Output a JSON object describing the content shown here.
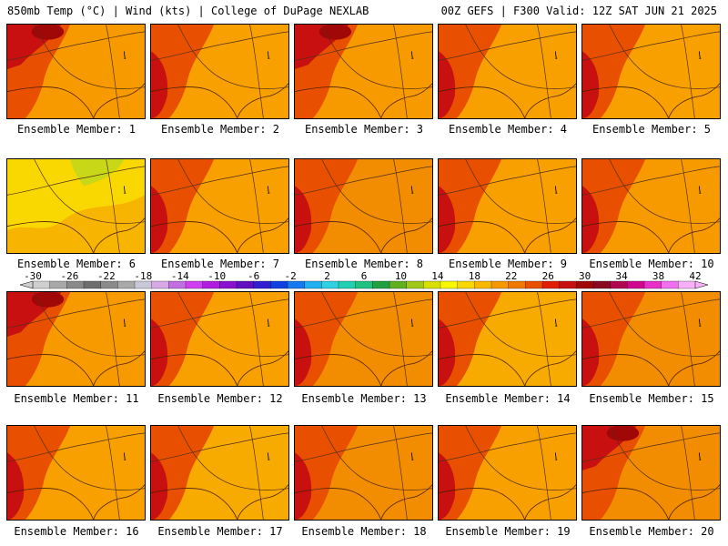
{
  "header": {
    "left": "850mb Temp (°C) | Wind (kts) | College of DuPage NEXLAB",
    "right": "00Z GEFS | F300 Valid: 12Z SAT JUN 21 2025"
  },
  "members": [
    {
      "label": "Ensemble Member: 1",
      "base": "#f79a00",
      "hot_side": "west-northwest"
    },
    {
      "label": "Ensemble Member: 2",
      "base": "#f7a000",
      "hot_side": "west"
    },
    {
      "label": "Ensemble Member: 3",
      "base": "#f79a00",
      "hot_side": "northwest"
    },
    {
      "label": "Ensemble Member: 4",
      "base": "#f7a000",
      "hot_side": "west"
    },
    {
      "label": "Ensemble Member: 5",
      "base": "#f7a000",
      "hot_side": "west"
    },
    {
      "label": "Ensemble Member: 6",
      "base": "#f7b400",
      "hot_side": "cool-north"
    },
    {
      "label": "Ensemble Member: 7",
      "base": "#f7a000",
      "hot_side": "west"
    },
    {
      "label": "Ensemble Member: 8",
      "base": "#f28c00",
      "hot_side": "west"
    },
    {
      "label": "Ensemble Member: 9",
      "base": "#f7a000",
      "hot_side": "west"
    },
    {
      "label": "Ensemble Member: 10",
      "base": "#f79a00",
      "hot_side": "west"
    },
    {
      "label": "Ensemble Member: 11",
      "base": "#f79a00",
      "hot_side": "northwest"
    },
    {
      "label": "Ensemble Member: 12",
      "base": "#f7a000",
      "hot_side": "west"
    },
    {
      "label": "Ensemble Member: 13",
      "base": "#f28c00",
      "hot_side": "west"
    },
    {
      "label": "Ensemble Member: 14",
      "base": "#f7aa00",
      "hot_side": "west"
    },
    {
      "label": "Ensemble Member: 15",
      "base": "#f28c00",
      "hot_side": "west"
    },
    {
      "label": "Ensemble Member: 16",
      "base": "#f7a000",
      "hot_side": "west"
    },
    {
      "label": "Ensemble Member: 17",
      "base": "#f7aa00",
      "hot_side": "west"
    },
    {
      "label": "Ensemble Member: 18",
      "base": "#f28c00",
      "hot_side": "west"
    },
    {
      "label": "Ensemble Member: 19",
      "base": "#f7a000",
      "hot_side": "west"
    },
    {
      "label": "Ensemble Member: 20",
      "base": "#f28c00",
      "hot_side": "northwest"
    }
  ],
  "colorbar": {
    "ticks": [
      "-30",
      "-26",
      "-22",
      "-18",
      "-14",
      "-10",
      "-6",
      "-2",
      "2",
      "6",
      "10",
      "14",
      "18",
      "22",
      "26",
      "30",
      "34",
      "38",
      "42"
    ],
    "colors": [
      "#cfcfcf",
      "#a8a8a8",
      "#8a8a8a",
      "#6e6e6e",
      "#8a8a8a",
      "#a9a9a9",
      "#c8c8d8",
      "#d9a8e6",
      "#c070e0",
      "#d040f0",
      "#b01ce0",
      "#8a10d0",
      "#6010c0",
      "#3020d0",
      "#1040e0",
      "#1878f0",
      "#20b0f0",
      "#30d0e0",
      "#20d0b0",
      "#20c080",
      "#20a040",
      "#60b020",
      "#a0c818",
      "#d8e000",
      "#f8f800",
      "#f8d800",
      "#f8b800",
      "#f89800",
      "#f07800",
      "#e85000",
      "#e02000",
      "#c81010",
      "#a00808",
      "#8a0820",
      "#b00850",
      "#d00890",
      "#e830c8",
      "#f070f0",
      "#f8b0f8"
    ]
  }
}
